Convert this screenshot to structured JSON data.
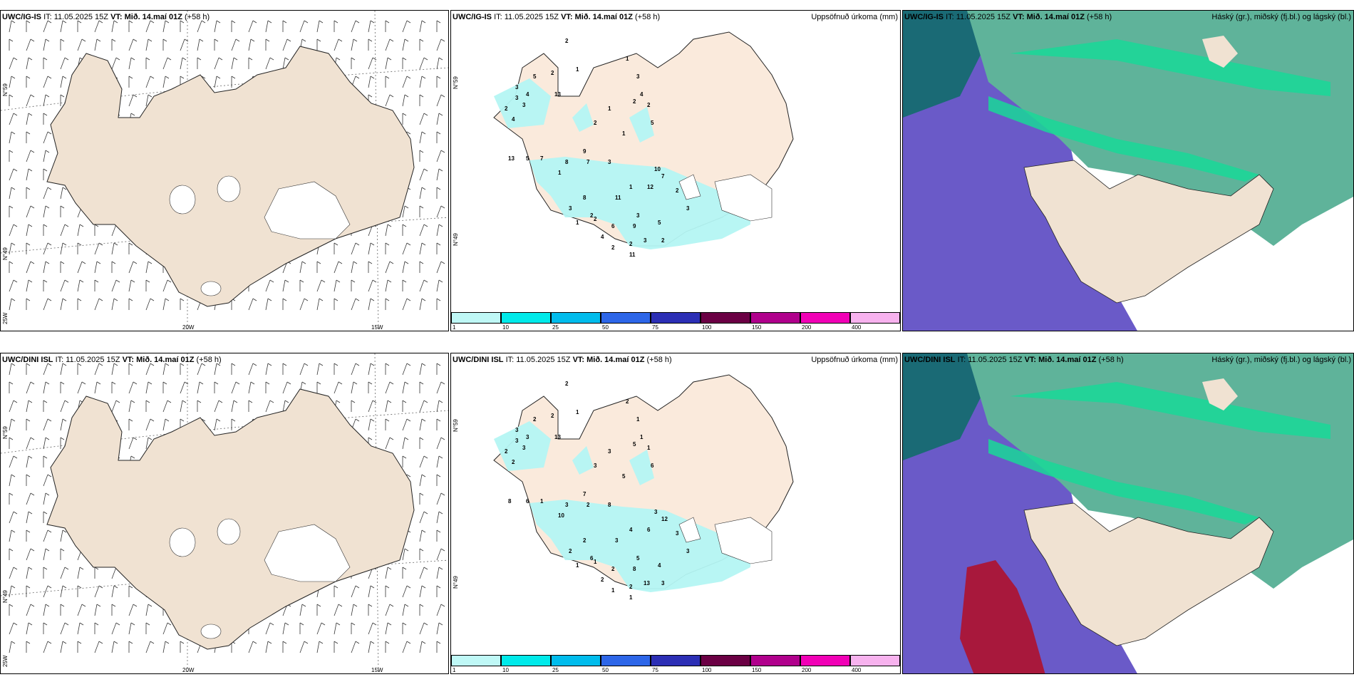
{
  "rows": [
    {
      "model": "UWC/IG-IS",
      "precip_numbers": [
        "2",
        "2",
        "5",
        "3",
        "4",
        "13",
        "2",
        "3",
        "3",
        "4",
        "1",
        "1",
        "3",
        "4",
        "2",
        "2",
        "1",
        "2",
        "5",
        "1",
        "9",
        "13",
        "5",
        "7",
        "8",
        "7",
        "3",
        "1",
        "10",
        "1",
        "7",
        "12",
        "11",
        "2",
        "8",
        "3",
        "2",
        "6",
        "3",
        "5",
        "3",
        "4",
        "2",
        "2",
        "2",
        "1",
        "9",
        "2",
        "3",
        "11"
      ]
    },
    {
      "model": "UWC/DINI ISL",
      "precip_numbers": [
        "2",
        "2",
        "2",
        "3",
        "3",
        "13",
        "2",
        "3",
        "3",
        "2",
        "1",
        "2",
        "1",
        "1",
        "5",
        "1",
        "3",
        "3",
        "6",
        "5",
        "7",
        "8",
        "6",
        "1",
        "3",
        "2",
        "8",
        "10",
        "3",
        "4",
        "12",
        "6",
        "3",
        "3",
        "2",
        "2",
        "6",
        "2",
        "5",
        "4",
        "3",
        "2",
        "2",
        "1",
        "1",
        "1",
        "8",
        "3",
        "13",
        "1"
      ]
    }
  ],
  "common": {
    "it_label": "IT:",
    "it_value": "11.05.2025 15Z",
    "vt_label": "VT:",
    "vt_value": "Mið. 14.maí 01Z",
    "lead": "(+58 h)"
  },
  "precip_title": "Uppsöfnuð úrkoma (mm)",
  "cloud_title": "Háský (gr.), miðský (fj.bl.) og lágský (bl.)",
  "lat_labels": [
    "N°59",
    "N°49",
    "25W"
  ],
  "lon_labels": [
    "20W",
    "15W"
  ],
  "colorbar": {
    "labels": [
      "1",
      "10",
      "25",
      "50",
      "75",
      "100",
      "150",
      "200",
      "400"
    ],
    "colors": [
      "#bff8f6",
      "#00eaea",
      "#00bcec",
      "#2d66e8",
      "#2c2fb5",
      "#6b0044",
      "#b0008c",
      "#f100b6",
      "#f7b2ee"
    ]
  },
  "colors": {
    "land": "#f0e2d2",
    "precip_land": "#faeadc",
    "precip_fill": "#b4f5f3",
    "cloud_dark": "#1a6a75",
    "cloud_green": "#5fb39a",
    "cloud_bright": "#19d898",
    "cloud_blue": "#6a5ac8",
    "cloud_red": "#a8183c"
  }
}
